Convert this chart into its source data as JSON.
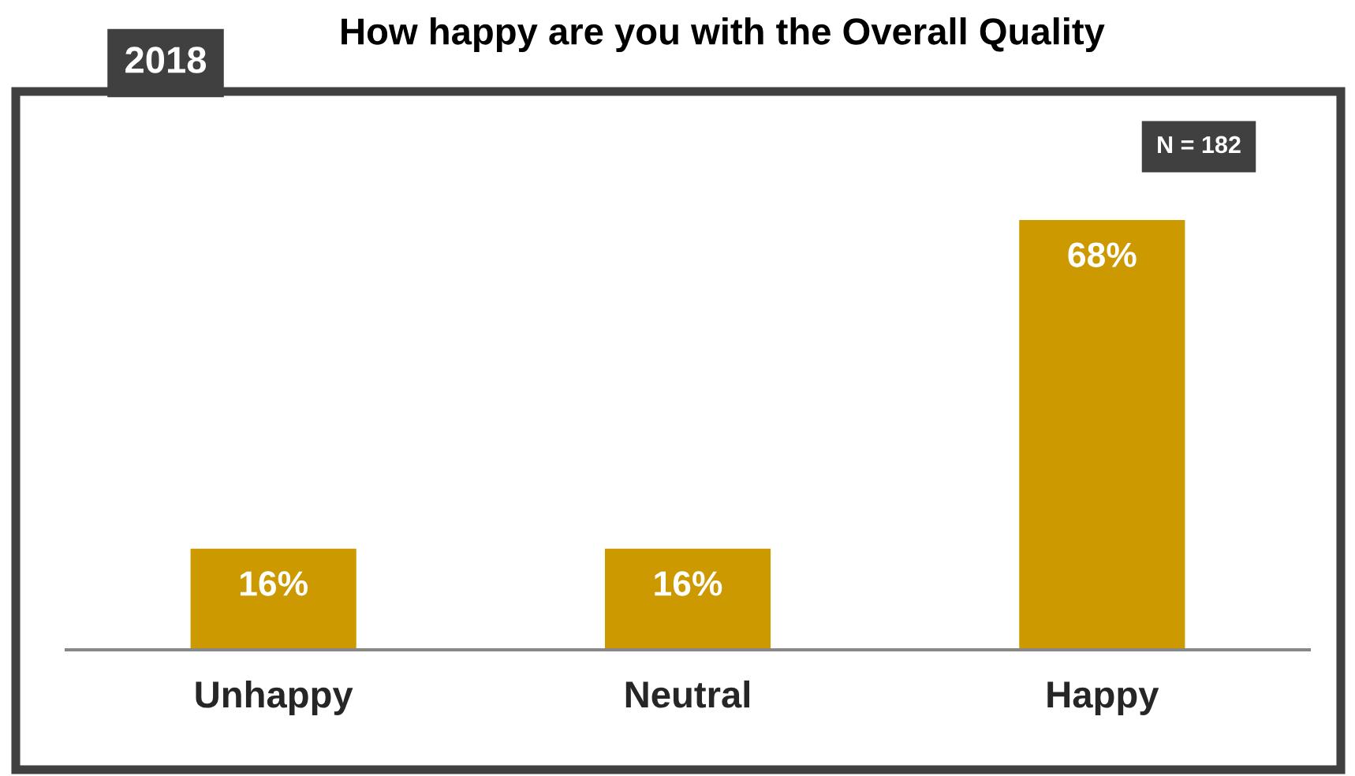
{
  "chart_data": {
    "type": "bar",
    "title": "How happy are you with the Overall Quality",
    "categories": [
      "Unhappy",
      "Neutral",
      "Happy"
    ],
    "values": [
      16,
      16,
      68
    ],
    "value_labels": [
      "16%",
      "16%",
      "68%"
    ],
    "color": "#cc9900",
    "grid": false,
    "annotations": [
      "2018",
      "N = 182"
    ]
  }
}
